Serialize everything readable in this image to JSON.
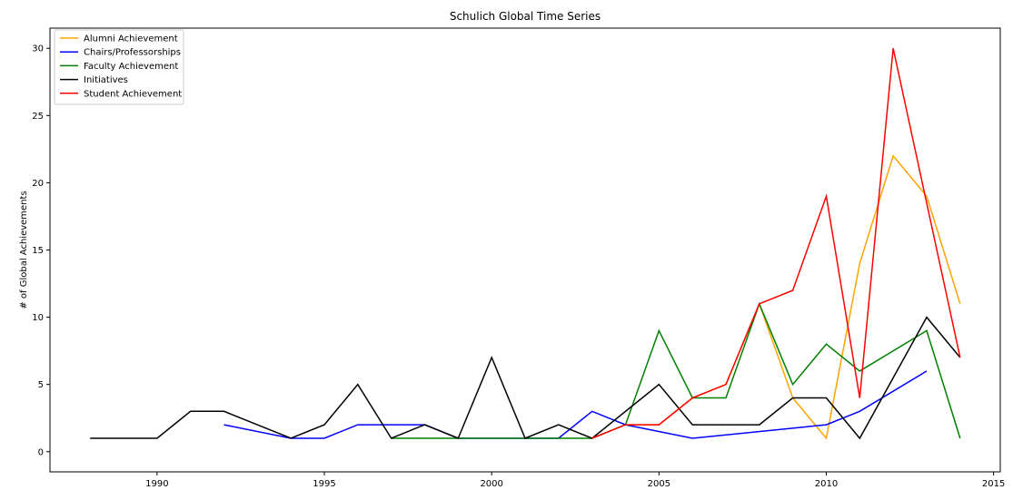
{
  "chart_data": {
    "type": "line",
    "title": "Schulich Global Time Series",
    "xlabel": "",
    "ylabel": "# of Global Achievements",
    "xlim": [
      1986.8,
      2015.2
    ],
    "ylim": [
      -1.5,
      31.5
    ],
    "xticks": [
      1990,
      1995,
      2000,
      2005,
      2010,
      2015
    ],
    "yticks": [
      0,
      5,
      10,
      15,
      20,
      25,
      30
    ],
    "grid": false,
    "legend_position": "top-left",
    "series": [
      {
        "name": "Alumni Achievement",
        "color": "#ffa500",
        "x": [
          2004,
          2005,
          2006,
          2007,
          2008,
          2009,
          2010,
          2011,
          2012,
          2013,
          2014
        ],
        "y": [
          2,
          2,
          4,
          5,
          11,
          4,
          1,
          14,
          22,
          19,
          11
        ]
      },
      {
        "name": "Chairs/Professorships",
        "color": "#0000ff",
        "x": [
          1992,
          1994,
          1995,
          1996,
          1998,
          1999,
          2002,
          2003,
          2004,
          2006,
          2010,
          2011,
          2013
        ],
        "y": [
          2,
          1,
          1,
          2,
          2,
          1,
          1,
          3,
          2,
          1,
          2,
          3,
          6
        ]
      },
      {
        "name": "Faculty Achievement",
        "color": "#008000",
        "x": [
          1997,
          2003,
          2004,
          2005,
          2006,
          2007,
          2008,
          2009,
          2010,
          2011,
          2013,
          2014
        ],
        "y": [
          1,
          1,
          2,
          9,
          4,
          4,
          11,
          5,
          8,
          6,
          9,
          1
        ]
      },
      {
        "name": "Initiatives",
        "color": "#000000",
        "x": [
          1988,
          1990,
          1991,
          1992,
          1994,
          1995,
          1996,
          1997,
          1998,
          1999,
          2000,
          2001,
          2002,
          2003,
          2005,
          2006,
          2008,
          2009,
          2010,
          2011,
          2013,
          2014
        ],
        "y": [
          1,
          1,
          3,
          3,
          1,
          2,
          5,
          1,
          2,
          1,
          7,
          1,
          2,
          1,
          5,
          2,
          2,
          4,
          4,
          1,
          10,
          7
        ]
      },
      {
        "name": "Student Achievement",
        "color": "#ff0000",
        "x": [
          2003,
          2004,
          2005,
          2006,
          2007,
          2008,
          2009,
          2010,
          2011,
          2012,
          2014
        ],
        "y": [
          1,
          2,
          2,
          4,
          5,
          11,
          12,
          19,
          4,
          30,
          7
        ]
      }
    ]
  }
}
